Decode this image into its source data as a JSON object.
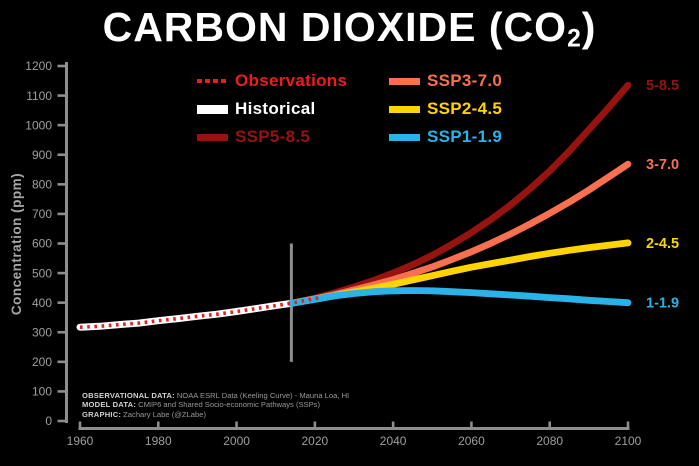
{
  "title": {
    "main": "CARBON DIOXIDE (CO",
    "sub": "2",
    "close": ")"
  },
  "legend": {
    "items": [
      {
        "label": "Observations",
        "color": "#ec1c20",
        "swatch": "dotted",
        "thickness": 4
      },
      {
        "label": "Historical",
        "color": "#ffffff",
        "swatch": "solid",
        "thickness": 9
      },
      {
        "label": "SSP5-8.5",
        "color": "#971310",
        "swatch": "solid",
        "thickness": 7
      },
      {
        "label": "SSP3-7.0",
        "color": "#f8704f",
        "swatch": "solid",
        "thickness": 7
      },
      {
        "label": "SSP2-4.5",
        "color": "#ffd400",
        "swatch": "solid",
        "thickness": 7
      },
      {
        "label": "SSP1-1.9",
        "color": "#29b3e8",
        "swatch": "solid",
        "thickness": 7
      }
    ]
  },
  "footer": {
    "lines": [
      {
        "label": "OBSERVATIONAL DATA:",
        "text": "NOAA ESRL Data (Keeling Curve) - Mauna Loa, HI"
      },
      {
        "label": "MODEL DATA:",
        "text": "CMIP6 and Shared Socio-economic Pathways (SSPs)"
      },
      {
        "label": "GRAPHIC:",
        "text": "Zachary Labe (@ZLabe)"
      }
    ]
  },
  "chart_data": {
    "type": "line",
    "title": "CARBON DIOXIDE (CO2)",
    "xlabel": "",
    "ylabel": "Concentration (ppm)",
    "xlim": [
      1960,
      2100
    ],
    "ylim": [
      0,
      1200
    ],
    "x_ticks": [
      1960,
      1980,
      2000,
      2020,
      2040,
      2060,
      2080,
      2100
    ],
    "y_ticks": [
      0,
      100,
      200,
      300,
      400,
      500,
      600,
      700,
      800,
      900,
      1000,
      1100,
      1200
    ],
    "grid": false,
    "background": "#000000",
    "axis_color": "#8e8e8e",
    "legend_position": "top",
    "vertical_marker": {
      "year": 2014,
      "from": 200,
      "to": 600,
      "color": "#8e8e8e"
    },
    "series": [
      {
        "name": "Historical",
        "color": "#ffffff",
        "style": "solid",
        "width": 7,
        "x": [
          1960,
          1965,
          1970,
          1975,
          1980,
          1985,
          1990,
          1995,
          2000,
          2005,
          2010,
          2014
        ],
        "values": [
          317,
          320,
          326,
          331,
          339,
          346,
          354,
          361,
          370,
          380,
          390,
          398
        ]
      },
      {
        "name": "SSP5-8.5",
        "color": "#971310",
        "style": "solid",
        "width": 6.8,
        "end_label": "5-8.5",
        "x": [
          2014,
          2020,
          2025,
          2030,
          2035,
          2040,
          2045,
          2050,
          2055,
          2060,
          2065,
          2070,
          2075,
          2080,
          2085,
          2090,
          2095,
          2100
        ],
        "values": [
          398,
          415,
          433,
          453,
          475,
          500,
          528,
          560,
          597,
          637,
          681,
          730,
          785,
          845,
          912,
          985,
          1058,
          1135
        ]
      },
      {
        "name": "SSP3-7.0",
        "color": "#f8704f",
        "style": "solid",
        "width": 6.8,
        "end_label": "3-7.0",
        "x": [
          2014,
          2020,
          2025,
          2030,
          2035,
          2040,
          2045,
          2050,
          2055,
          2060,
          2065,
          2070,
          2075,
          2080,
          2085,
          2090,
          2095,
          2100
        ],
        "values": [
          398,
          413,
          427,
          443,
          460,
          478,
          499,
          521,
          546,
          572,
          601,
          632,
          666,
          702,
          740,
          781,
          824,
          868
        ]
      },
      {
        "name": "SSP2-4.5",
        "color": "#ffd400",
        "style": "solid",
        "width": 6.8,
        "end_label": "2-4.5",
        "x": [
          2014,
          2020,
          2025,
          2030,
          2035,
          2040,
          2045,
          2050,
          2055,
          2060,
          2065,
          2070,
          2075,
          2080,
          2085,
          2090,
          2095,
          2100
        ],
        "values": [
          398,
          412,
          424,
          436,
          449,
          462,
          477,
          491,
          506,
          520,
          532,
          544,
          556,
          567,
          577,
          586,
          594,
          602
        ]
      },
      {
        "name": "SSP1-1.9",
        "color": "#29b3e8",
        "style": "solid",
        "width": 6.8,
        "end_label": "1-1.9",
        "x": [
          2014,
          2020,
          2025,
          2030,
          2035,
          2040,
          2045,
          2050,
          2055,
          2060,
          2065,
          2070,
          2075,
          2080,
          2085,
          2090,
          2095,
          2100
        ],
        "values": [
          398,
          411,
          423,
          431,
          437,
          440,
          441,
          440,
          437,
          434,
          430,
          426,
          422,
          417,
          413,
          408,
          404,
          400
        ]
      },
      {
        "name": "Observations",
        "color": "#ec1c20",
        "style": "dotted",
        "width": 3.6,
        "x": [
          1960,
          1965,
          1970,
          1975,
          1980,
          1985,
          1990,
          1995,
          2000,
          2005,
          2010,
          2014,
          2016,
          2018,
          2020,
          2021
        ],
        "values": [
          317,
          320,
          326,
          331,
          339,
          346,
          354,
          361,
          370,
          380,
          390,
          398,
          404,
          408,
          414,
          416
        ]
      }
    ]
  }
}
